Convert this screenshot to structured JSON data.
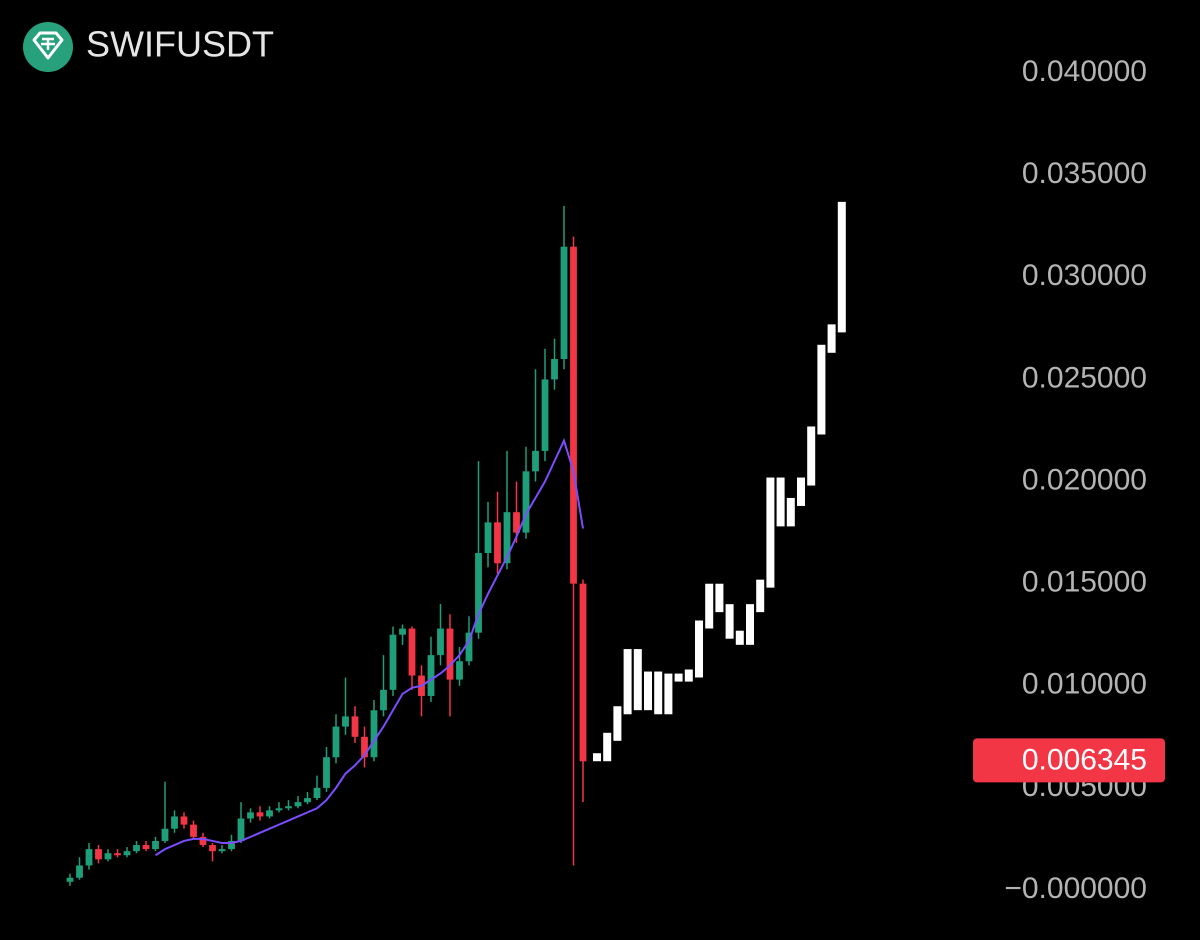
{
  "chart_data": {
    "type": "candlestick",
    "title": "SWIFUSDT",
    "ylim": [
      -0.00245,
      0.04358
    ],
    "yticks": [
      {
        "value": 0,
        "label": "−0.000000"
      },
      {
        "value": 0.005,
        "label": "0.005000"
      },
      {
        "value": 0.01,
        "label": "0.010000"
      },
      {
        "value": 0.015,
        "label": "0.015000"
      },
      {
        "value": 0.02,
        "label": "0.020000"
      },
      {
        "value": 0.025,
        "label": "0.025000"
      },
      {
        "value": 0.03,
        "label": "0.030000"
      },
      {
        "value": 0.035,
        "label": "0.035000"
      },
      {
        "value": 0.04,
        "label": "0.040000"
      }
    ],
    "up_color": "#1f9e7a",
    "down_color": "#f23645",
    "open": [
      0.0004,
      0.0006,
      0.0012,
      0.002,
      0.0015,
      0.0018,
      0.0017,
      0.0019,
      0.0022,
      0.002,
      0.0024,
      0.003,
      0.0036,
      0.0032,
      0.0026,
      0.0022,
      0.0019,
      0.002,
      0.0024,
      0.0035,
      0.0038,
      0.0036,
      0.0039,
      0.004,
      0.0041,
      0.0043,
      0.0045,
      0.005,
      0.0065,
      0.008,
      0.0085,
      0.0075,
      0.0065,
      0.0088,
      0.0098,
      0.0125,
      0.0128,
      0.0105,
      0.0095,
      0.0115,
      0.0128,
      0.0103,
      0.0112,
      0.0126,
      0.0165,
      0.018,
      0.016,
      0.0185,
      0.0175,
      0.0205,
      0.0215,
      0.025,
      0.026,
      0.0315,
      0.015
    ],
    "close": [
      0.0006,
      0.0012,
      0.002,
      0.0015,
      0.0018,
      0.0017,
      0.0019,
      0.0022,
      0.002,
      0.0024,
      0.003,
      0.0036,
      0.0032,
      0.0026,
      0.0022,
      0.0019,
      0.002,
      0.0024,
      0.0035,
      0.0038,
      0.0036,
      0.0039,
      0.004,
      0.0041,
      0.0043,
      0.0045,
      0.005,
      0.0065,
      0.008,
      0.0085,
      0.0075,
      0.0065,
      0.0088,
      0.0098,
      0.0125,
      0.0128,
      0.0105,
      0.0095,
      0.0115,
      0.0128,
      0.0103,
      0.0112,
      0.0126,
      0.0165,
      0.018,
      0.016,
      0.0185,
      0.0175,
      0.0205,
      0.0215,
      0.025,
      0.026,
      0.0315,
      0.015,
      0.0063
    ],
    "high": [
      0.0008,
      0.0016,
      0.0023,
      0.0022,
      0.002,
      0.002,
      0.0021,
      0.0024,
      0.0024,
      0.0026,
      0.0053,
      0.0039,
      0.0038,
      0.0034,
      0.0028,
      0.0023,
      0.0022,
      0.0027,
      0.0043,
      0.004,
      0.0041,
      0.0041,
      0.0043,
      0.0044,
      0.0046,
      0.0048,
      0.0056,
      0.007,
      0.0086,
      0.0104,
      0.009,
      0.008,
      0.0093,
      0.0115,
      0.0129,
      0.013,
      0.0129,
      0.011,
      0.0124,
      0.014,
      0.0135,
      0.0119,
      0.0134,
      0.021,
      0.019,
      0.0195,
      0.0215,
      0.02,
      0.0217,
      0.0255,
      0.0265,
      0.027,
      0.0335,
      0.032,
      0.0152
    ],
    "low": [
      0.0002,
      0.0005,
      0.001,
      0.0013,
      0.0014,
      0.0016,
      0.0016,
      0.0018,
      0.0019,
      0.0019,
      0.0023,
      0.0028,
      0.003,
      0.0025,
      0.0021,
      0.0014,
      0.0018,
      0.0019,
      0.0023,
      0.0033,
      0.0034,
      0.0035,
      0.0038,
      0.0039,
      0.004,
      0.0042,
      0.0044,
      0.0048,
      0.0062,
      0.0076,
      0.0072,
      0.006,
      0.0063,
      0.0085,
      0.0095,
      0.012,
      0.0098,
      0.0085,
      0.0092,
      0.011,
      0.0085,
      0.01,
      0.011,
      0.0123,
      0.0158,
      0.0155,
      0.0157,
      0.017,
      0.0172,
      0.02,
      0.021,
      0.0245,
      0.0255,
      0.0012,
      0.0043
    ],
    "ma": {
      "color": "#7b4dff",
      "values": [
        null,
        null,
        null,
        null,
        null,
        null,
        null,
        null,
        null,
        0.0017,
        0.002,
        0.0022,
        0.0024,
        0.0025,
        0.0025,
        0.0024,
        0.0023,
        0.0023,
        0.0024,
        0.0026,
        0.0028,
        0.003,
        0.0032,
        0.0034,
        0.0036,
        0.0038,
        0.004,
        0.0044,
        0.005,
        0.0057,
        0.0061,
        0.0066,
        0.0073,
        0.008,
        0.0088,
        0.0096,
        0.0099,
        0.01,
        0.0103,
        0.0106,
        0.011,
        0.0115,
        0.0122,
        0.0135,
        0.0145,
        0.0154,
        0.0163,
        0.0173,
        0.0184,
        0.0192,
        0.02,
        0.021,
        0.022,
        0.0205,
        0.0177
      ]
    },
    "projection": {
      "color": "#ffffff",
      "values": [
        0.0065,
        0.0075,
        0.0088,
        0.0116,
        0.009,
        0.0105,
        0.0088,
        0.0104,
        0.0104,
        0.0106,
        0.013,
        0.0148,
        0.0138,
        0.0125,
        0.0122,
        0.0138,
        0.015,
        0.02,
        0.018,
        0.019,
        0.02,
        0.0225,
        0.0265,
        0.0275,
        0.0335
      ]
    },
    "last_price": 0.006345,
    "last_price_color": "#f23645"
  }
}
